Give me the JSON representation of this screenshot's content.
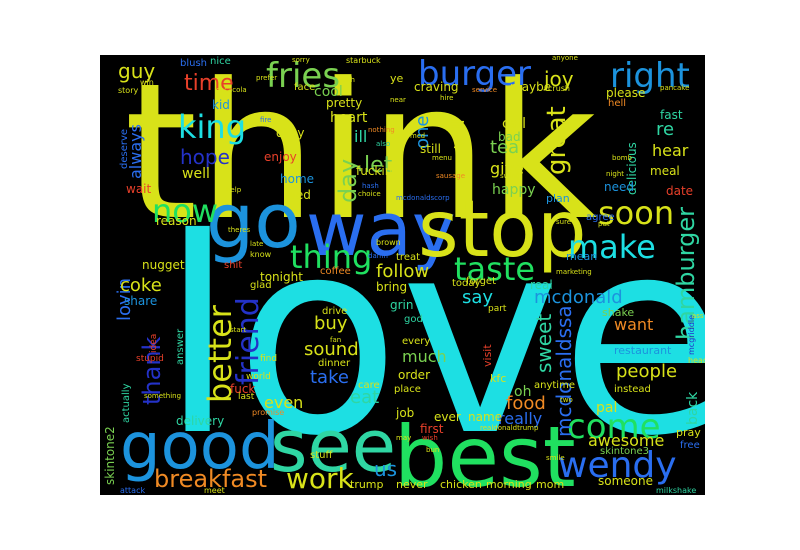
{
  "palette": {
    "yellow": "#d8e219",
    "cyan": "#1ddfe3",
    "blue": "#2a6ef0",
    "mblue": "#1c93dd",
    "green": "#20e060",
    "lgreen": "#7ad151",
    "teal": "#2fd6a3",
    "red": "#e8402a",
    "orange": "#f08a24",
    "navy": "#2432c8",
    "background": "#000000"
  },
  "words": {
    "love": "love",
    "think": "think",
    "best": "best",
    "good": "good",
    "see": "see",
    "go": "go",
    "way": "way",
    "stop": "stop",
    "wendy": "wendy",
    "burger": "burger",
    "fries": "fries",
    "right": "right",
    "king": "king",
    "now": "now",
    "thing": "thing",
    "make": "make",
    "soon": "soon",
    "taste": "taste",
    "better": "better",
    "friend": "friend",
    "thank": "thank",
    "come": "come",
    "breakfast": "breakfast",
    "work": "work",
    "us": "us",
    "awesome": "awesome",
    "hope": "hope",
    "time": "time",
    "day": "day",
    "let": "let",
    "tea": "tea",
    "great": "great",
    "hamburger": "hamburger",
    "coke": "coke",
    "follow": "follow",
    "say": "say",
    "sweet": "sweet",
    "sound": "sound",
    "take": "take",
    "eat": "eat",
    "people": "people",
    "food": "food",
    "mcdonald": "mcdonald",
    "mcdonaldssa": "mcdonaldssa",
    "lovin": "lovin",
    "guy": "guy",
    "joy": "joy",
    "re": "re",
    "hear": "hear",
    "meal": "meal",
    "buy": "buy",
    "want": "want",
    "much": "much",
    "really": "really",
    "skintone2": "skintone2",
    "even": "even",
    "give": "give",
    "one": "one",
    "will": "will",
    "heart": "heart",
    "always": "always",
    "fast": "fast",
    "ill": "ill",
    "happy": "happy",
    "call": "call",
    "okay": "okay",
    "enjoy": "enjoy",
    "home": "home",
    "wed": "wed",
    "well": "well",
    "kid": "kid",
    "cool": "cool",
    "pretty": "pretty",
    "craving": "craving",
    "maybe": "maybe",
    "please": "please",
    "hell": "hell",
    "delicious": "delicious",
    "still": "still",
    "bad": "bad",
    "fuckin": "fuckin",
    "wait": "wait",
    "need": "need",
    "date": "date",
    "agree": "agree",
    "plan": "plan",
    "reason": "reason",
    "nugget": "nugget",
    "shit": "shit",
    "glad": "glad",
    "tonight": "tonight",
    "coffee": "coffee",
    "bring": "bring",
    "grin": "grin",
    "treat": "treat",
    "forget": "forget",
    "real": "real",
    "mean": "mean",
    "share": "share",
    "answer": "answer",
    "god": "god",
    "every": "every",
    "shake": "shake",
    "visit": "visit",
    "part": "part",
    "today": "today",
    "restaurant": "restaurant",
    "oh": "oh",
    "order": "order",
    "anytime": "anytime",
    "instead": "instead",
    "dinner": "dinner",
    "drive": "drive",
    "fuck": "fuck",
    "pal": "pal",
    "back": "back",
    "pray": "pray",
    "free": "free",
    "delivery": "delivery",
    "job": "job",
    "ever": "ever",
    "name": "name",
    "first": "first",
    "chicken": "chicken",
    "morning": "morning",
    "mom": "mom",
    "someone": "someone",
    "trump": "trump",
    "never": "never",
    "stuff": "stuff",
    "skintone3": "skintone3",
    "kfc": "kfc",
    "actually": "actually",
    "stupid": "stupid",
    "care": "care",
    "place": "place",
    "idea": "idea",
    "find": "find",
    "world": "world",
    "last": "last",
    "promise": "promise",
    "attack": "attack",
    "meet": "meet",
    "milkshake": "milkshake",
    "sorry": "sorry",
    "starbuck": "starbuck",
    "blush": "blush",
    "nice": "nice",
    "win": "win",
    "story": "story",
    "cocacola": "cocacola",
    "prefer": "prefer",
    "face": "face",
    "smh": "smh",
    "crush": "crush",
    "service": "service",
    "pancake": "pancake",
    "anyone": "anyone",
    "fire": "fire",
    "nothing": "nothing",
    "mcd": "mcd",
    "hire": "hire",
    "also": "also",
    "near": "near",
    "sausage": "sausage",
    "swing": "swing",
    "night": "night",
    "bomb": "bomb",
    "hash": "hash",
    "choice": "choice",
    "mcdonaldscorp": "mcdonaldscorp",
    "theres": "theres",
    "late": "late",
    "know": "know",
    "damn": "damn",
    "brown": "brown",
    "deserve": "deserve",
    "marketing": "marketing",
    "sure": "sure",
    "help": "help",
    "mcgriddle": "mcgriddle",
    "wish": "wish",
    "two": "two",
    "realdonaldtrump": "realdonaldtrump",
    "may": "may",
    "smile": "smile",
    "bun": "bun",
    "ye": "ye",
    "start": "start",
    "fan": "fan",
    "menu": "menu",
    "something": "something",
    "head": "head",
    "put": "put",
    "ass": "ass"
  }
}
